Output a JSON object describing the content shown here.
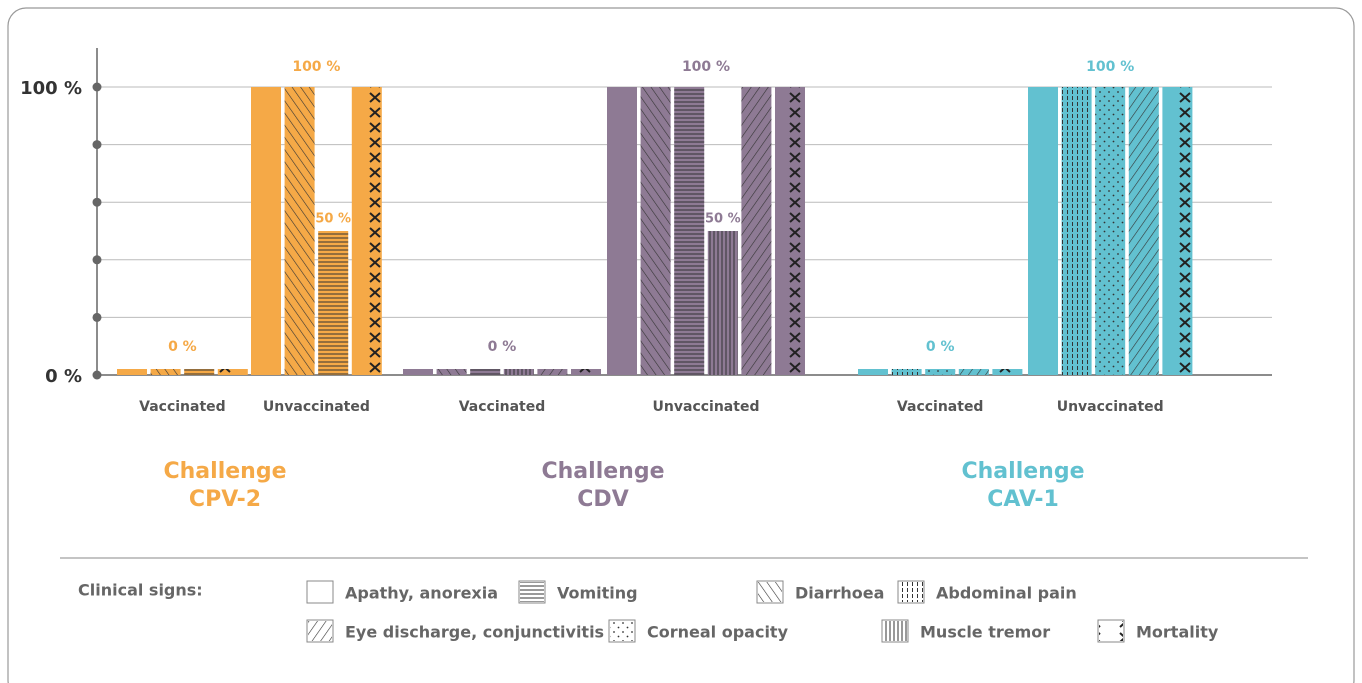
{
  "chart_data": [
    {
      "type": "bar",
      "title": [
        "Challenge",
        "CPV-2"
      ],
      "color": "#f5a947",
      "categories": [
        "Vaccinated",
        "Unvaccinated"
      ],
      "group_value_labels": [
        "0 %",
        "100 %"
      ],
      "series": [
        {
          "name": "Apathy, anorexia",
          "pattern": "plain",
          "values": [
            0,
            100
          ]
        },
        {
          "name": "Diarrhoea",
          "pattern": "backslash",
          "values": [
            0,
            100
          ]
        },
        {
          "name": "Vomiting",
          "pattern": "horizontal",
          "values": [
            0,
            50
          ],
          "value_labels": [
            null,
            "50 %"
          ]
        },
        {
          "name": "Mortality",
          "pattern": "cross",
          "values": [
            0,
            100
          ]
        }
      ]
    },
    {
      "type": "bar",
      "title": [
        "Challenge",
        "CDV"
      ],
      "color": "#8e7a94",
      "categories": [
        "Vaccinated",
        "Unvaccinated"
      ],
      "group_value_labels": [
        "0 %",
        "100 %"
      ],
      "series": [
        {
          "name": "Apathy, anorexia",
          "pattern": "plain",
          "values": [
            0,
            100
          ]
        },
        {
          "name": "Diarrhoea",
          "pattern": "backslash",
          "values": [
            0,
            100
          ]
        },
        {
          "name": "Vomiting",
          "pattern": "horizontal",
          "values": [
            0,
            100
          ]
        },
        {
          "name": "Muscle tremor",
          "pattern": "vertical",
          "values": [
            0,
            50
          ],
          "value_labels": [
            null,
            "50 %"
          ]
        },
        {
          "name": "Eye discharge, conjunctivitis",
          "pattern": "slash",
          "values": [
            0,
            100
          ]
        },
        {
          "name": "Mortality",
          "pattern": "cross",
          "values": [
            0,
            100
          ]
        }
      ]
    },
    {
      "type": "bar",
      "title": [
        "Challenge",
        "CAV-1"
      ],
      "color": "#62c1d0",
      "categories": [
        "Vaccinated",
        "Unvaccinated"
      ],
      "group_value_labels": [
        "0 %",
        "100 %"
      ],
      "series": [
        {
          "name": "Apathy, anorexia",
          "pattern": "plain",
          "values": [
            0,
            100
          ]
        },
        {
          "name": "Abdominal pain",
          "pattern": "vdashed",
          "values": [
            0,
            100
          ]
        },
        {
          "name": "Corneal opacity",
          "pattern": "dots",
          "values": [
            0,
            100
          ]
        },
        {
          "name": "Eye discharge, conjunctivitis",
          "pattern": "slash",
          "values": [
            0,
            100
          ]
        },
        {
          "name": "Mortality",
          "pattern": "cross",
          "values": [
            0,
            100
          ]
        }
      ]
    }
  ],
  "ylim": [
    0,
    100
  ],
  "yticks": [
    {
      "value": 0,
      "label": "0 %"
    },
    {
      "value": 20,
      "label": null
    },
    {
      "value": 40,
      "label": null
    },
    {
      "value": 60,
      "label": null
    },
    {
      "value": 80,
      "label": null
    },
    {
      "value": 100,
      "label": "100 %"
    }
  ],
  "grid": true,
  "legend": {
    "title": "Clinical signs:",
    "items": [
      {
        "name": "Apathy, anorexia",
        "pattern": "plain"
      },
      {
        "name": "Vomiting",
        "pattern": "horizontal"
      },
      {
        "name": "Diarrhoea",
        "pattern": "backslash"
      },
      {
        "name": "Abdominal pain",
        "pattern": "vdashed"
      },
      {
        "name": "Eye discharge, conjunctivitis",
        "pattern": "slash"
      },
      {
        "name": "Corneal opacity",
        "pattern": "dots"
      },
      {
        "name": "Muscle tremor",
        "pattern": "vertical"
      },
      {
        "name": "Mortality",
        "pattern": "cross"
      }
    ]
  }
}
